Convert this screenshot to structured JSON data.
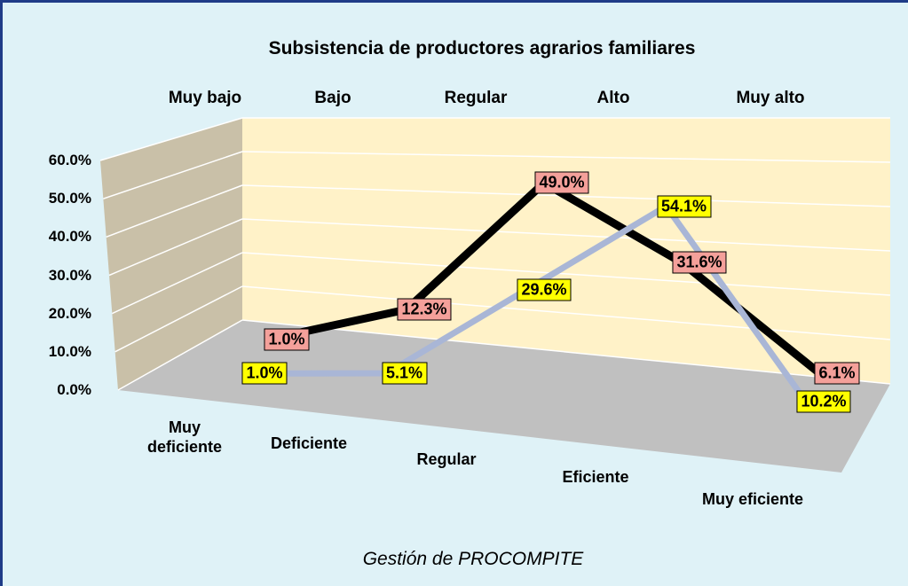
{
  "chart_data": {
    "type": "line3d",
    "title": "Subsistencia de productores agrarios familiares",
    "x_label": "Gestión de PROCOMPITE",
    "depth_labels": [
      "Muy bajo",
      "Bajo",
      "Regular",
      "Alto",
      "Muy alto"
    ],
    "categories": [
      "Muy deficiente",
      "Deficiente",
      "Regular",
      "Eficiente",
      "Muy eficiente"
    ],
    "ylim": [
      0,
      60
    ],
    "yticks": [
      {
        "value": 0,
        "label": "0.0%"
      },
      {
        "value": 10,
        "label": "10.0%"
      },
      {
        "value": 20,
        "label": "20.0%"
      },
      {
        "value": 30,
        "label": "30.0%"
      },
      {
        "value": 40,
        "label": "40.0%"
      },
      {
        "value": 50,
        "label": "50.0%"
      },
      {
        "value": 60,
        "label": "60.0%"
      }
    ],
    "grid": true,
    "series": [
      {
        "color": "#000000",
        "label_color": "#f4a09a",
        "values": [
          1.0,
          12.3,
          49.0,
          31.6,
          6.1
        ],
        "value_labels": [
          "1.0%",
          "12.3%",
          "49.0%",
          "31.6%",
          "6.1%"
        ]
      },
      {
        "color": "#a9b6d6",
        "label_color": "#ffff00",
        "values": [
          1.0,
          5.1,
          29.6,
          54.1,
          10.2
        ],
        "value_labels": [
          "1.0%",
          "5.1%",
          "29.6%",
          "54.1%",
          "10.2%"
        ]
      }
    ]
  }
}
